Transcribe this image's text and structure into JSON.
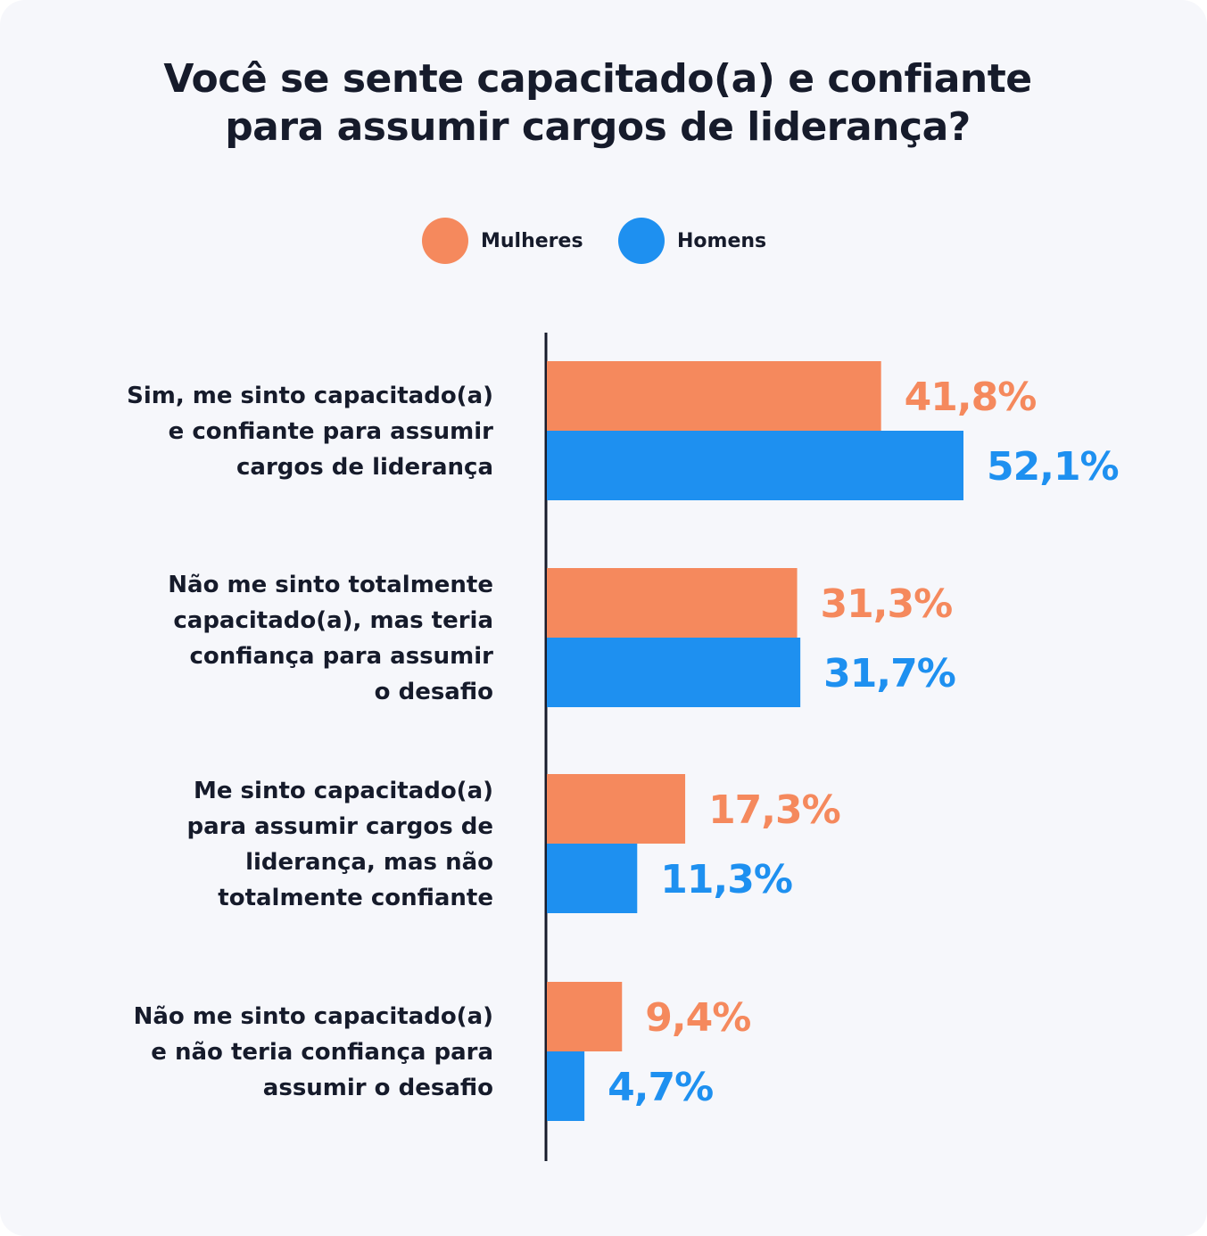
{
  "chart_data": {
    "type": "bar",
    "orientation": "horizontal",
    "title": "Você se sente capacitado(a) e confiante para assumir cargos de liderança?",
    "title_lines": [
      "Você se sente capacitado(a) e confiante",
      "para assumir cargos de liderança?"
    ],
    "legend_position": "top-center",
    "grid": false,
    "categories": [
      "Sim, me sinto capacitado(a) e confiante para assumir cargos de liderança",
      "Não me sinto totalmente capacitado(a), mas teria confiança para assumir o desafio",
      "Me sinto capacitado(a) para assumir cargos de liderança, mas não totalmente confiante",
      "Não me sinto capacitado(a) e não teria confiança para assumir o desafio"
    ],
    "category_lines": [
      [
        "Sim, me sinto capacitado(a)",
        "e confiante para assumir",
        "cargos de liderança"
      ],
      [
        "Não me sinto totalmente",
        "capacitado(a), mas teria",
        "confiança para assumir",
        "o desafio"
      ],
      [
        "Me sinto capacitado(a)",
        "para assumir cargos de",
        "liderança, mas não",
        "totalmente confiante"
      ],
      [
        "Não me sinto capacitado(a)",
        "e não teria confiança para",
        "assumir o desafio"
      ]
    ],
    "series": [
      {
        "name": "Mulheres",
        "color": "#f5895d",
        "values": [
          41.8,
          31.3,
          17.3,
          9.4
        ],
        "labels": [
          "41,8%",
          "31,3%",
          "17,3%",
          "9,4%"
        ]
      },
      {
        "name": "Homens",
        "color": "#1e90f0",
        "values": [
          52.1,
          31.7,
          11.3,
          4.7
        ],
        "labels": [
          "52,1%",
          "31,7%",
          "11,3%",
          "4,7%"
        ]
      }
    ],
    "xlim": [
      0,
      60
    ],
    "axis_color": "#161b2b"
  }
}
